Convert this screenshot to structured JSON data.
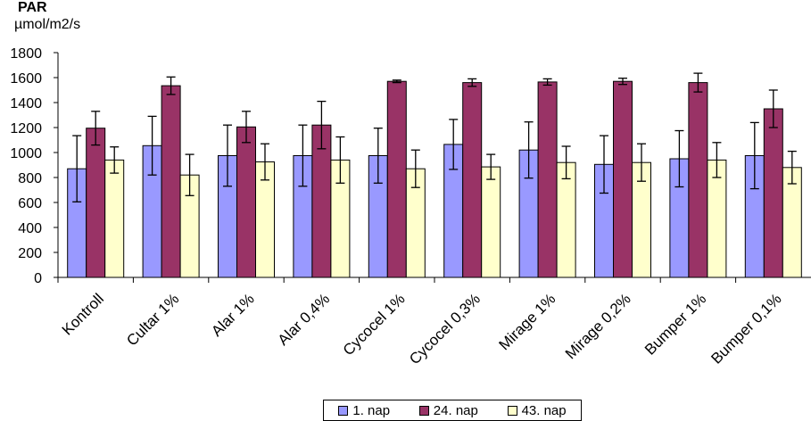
{
  "chart_data": {
    "type": "bar",
    "title": "PAR",
    "ylabel": "µmol/m2/s",
    "xlabel": "",
    "ylim": [
      0,
      1800
    ],
    "yticks": [
      0,
      200,
      400,
      600,
      800,
      1000,
      1200,
      1400,
      1600,
      1800
    ],
    "grid": false,
    "legend_position": "bottom",
    "categories": [
      "Kontroll",
      "Cultar 1%",
      "Alar 1%",
      "Alar 0,4%",
      "Cycocel 1%",
      "Cycocel 0,3%",
      "Mirage 1%",
      "Mirage 0,2%",
      "Bumper 1%",
      "Bumper 0,1%"
    ],
    "series": [
      {
        "name": "1. nap",
        "color": "#9999ff",
        "values": [
          870,
          1055,
          975,
          975,
          975,
          1065,
          1020,
          905,
          950,
          975
        ],
        "error": [
          265,
          235,
          245,
          245,
          220,
          200,
          225,
          230,
          225,
          265
        ]
      },
      {
        "name": "24. nap",
        "color": "#993366",
        "values": [
          1195,
          1535,
          1205,
          1220,
          1570,
          1560,
          1565,
          1570,
          1560,
          1350
        ],
        "error": [
          135,
          70,
          125,
          190,
          10,
          30,
          25,
          25,
          75,
          150
        ]
      },
      {
        "name": "43. nap",
        "color": "#ffffcc",
        "values": [
          940,
          820,
          925,
          940,
          870,
          885,
          920,
          920,
          940,
          880
        ],
        "error": [
          105,
          165,
          145,
          185,
          150,
          100,
          130,
          150,
          140,
          130
        ]
      }
    ]
  }
}
